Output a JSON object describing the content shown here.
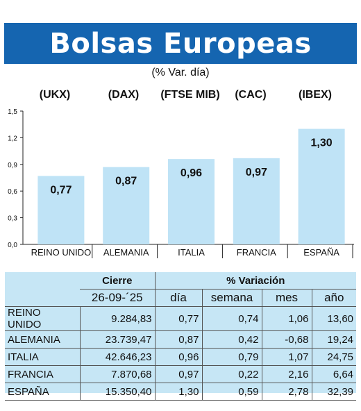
{
  "title": "Bolsas Europeas",
  "subtitle": "(% Var. día)",
  "indices": [
    "(UKX)",
    "(DAX)",
    "(FTSE MIB)",
    "(CAC)",
    "(IBEX)"
  ],
  "colors": {
    "banner": "#1565b0",
    "bar": "#bfe3f6",
    "table_bg": "#c6e6f5"
  },
  "chart_data": {
    "type": "bar",
    "title": "Bolsas Europeas",
    "subtitle": "(% Var. día)",
    "categories": [
      "REINO UNIDO",
      "ALEMANIA",
      "ITALIA",
      "FRANCIA",
      "ESPAÑA"
    ],
    "values": [
      0.77,
      0.87,
      0.96,
      0.97,
      1.3
    ],
    "value_labels": [
      "0,77",
      "0,87",
      "0,96",
      "0,97",
      "1,30"
    ],
    "yticks": [
      "0,0",
      "0,3",
      "0,6",
      "0,9",
      "1,2",
      "1,5"
    ],
    "ylim": [
      0,
      1.5
    ],
    "grid": false,
    "legend": "none"
  },
  "table": {
    "header_cierre": "Cierre",
    "header_variacion": "% Variación",
    "date": "26-09-´25",
    "cols": [
      "día",
      "semana",
      "mes",
      "año"
    ],
    "rows": [
      {
        "name": "REINO UNIDO",
        "cierre": "9.284,83",
        "dia": "0,77",
        "semana": "0,74",
        "mes": "1,06",
        "anio": "13,60"
      },
      {
        "name": "ALEMANIA",
        "cierre": "23.739,47",
        "dia": "0,87",
        "semana": "0,42",
        "mes": "-0,68",
        "anio": "19,24"
      },
      {
        "name": "ITALIA",
        "cierre": "42.646,23",
        "dia": "0,96",
        "semana": "0,79",
        "mes": "1,07",
        "anio": "24,75"
      },
      {
        "name": "FRANCIA",
        "cierre": "7.870,68",
        "dia": "0,97",
        "semana": "0,22",
        "mes": "2,16",
        "anio": "6,64"
      },
      {
        "name": "ESPAÑA",
        "cierre": "15.350,40",
        "dia": "1,30",
        "semana": "0,59",
        "mes": "2,78",
        "anio": "32,39"
      }
    ]
  }
}
